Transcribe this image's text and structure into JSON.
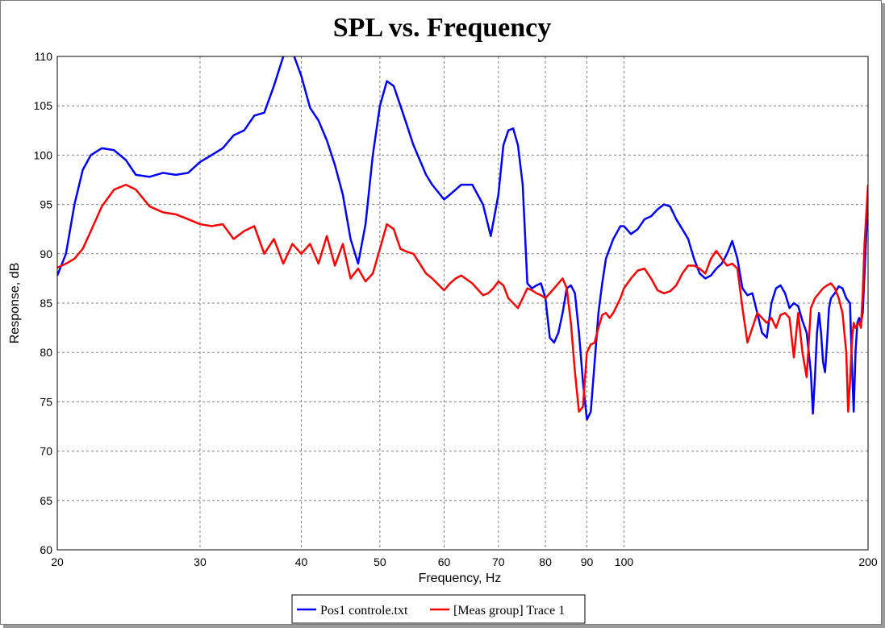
{
  "chart_data": {
    "type": "line",
    "title": "SPL vs. Frequency",
    "xlabel": "Frequency, Hz",
    "ylabel": "Response, dB",
    "x_scale": "log",
    "xlim": [
      20,
      200
    ],
    "ylim": [
      60,
      110
    ],
    "x_ticks": [
      20,
      30,
      40,
      50,
      60,
      70,
      80,
      90,
      100,
      200
    ],
    "y_ticks": [
      60,
      65,
      70,
      75,
      80,
      85,
      90,
      95,
      100,
      105,
      110
    ],
    "grid": true,
    "legend_position": "bottom-center",
    "series": [
      {
        "name": "Pos1 controle.txt",
        "color": "#0000ff",
        "points": [
          [
            20,
            87.8
          ],
          [
            20.5,
            90
          ],
          [
            21,
            95
          ],
          [
            21.5,
            98.5
          ],
          [
            22,
            100
          ],
          [
            22.7,
            100.7
          ],
          [
            23.5,
            100.5
          ],
          [
            24.3,
            99.5
          ],
          [
            25,
            98
          ],
          [
            26,
            97.8
          ],
          [
            27,
            98.2
          ],
          [
            28,
            98
          ],
          [
            29,
            98.2
          ],
          [
            30,
            99.3
          ],
          [
            31,
            100
          ],
          [
            32,
            100.7
          ],
          [
            33,
            102
          ],
          [
            34,
            102.5
          ],
          [
            35,
            104
          ],
          [
            36,
            104.3
          ],
          [
            37,
            107
          ],
          [
            38,
            110
          ],
          [
            39,
            110.5
          ],
          [
            40,
            108
          ],
          [
            41,
            104.8
          ],
          [
            42,
            103.5
          ],
          [
            43,
            101.5
          ],
          [
            44,
            99
          ],
          [
            45,
            96
          ],
          [
            46,
            91.5
          ],
          [
            47,
            89
          ],
          [
            48,
            93
          ],
          [
            49,
            100
          ],
          [
            50,
            105
          ],
          [
            51,
            107.5
          ],
          [
            52,
            107
          ],
          [
            53,
            105
          ],
          [
            54,
            103
          ],
          [
            55,
            101
          ],
          [
            56,
            99.5
          ],
          [
            57,
            98
          ],
          [
            58,
            97
          ],
          [
            60,
            95.5
          ],
          [
            61,
            96
          ],
          [
            62,
            96.5
          ],
          [
            63,
            97
          ],
          [
            65,
            97
          ],
          [
            67,
            95
          ],
          [
            68.5,
            91.8
          ],
          [
            70,
            96
          ],
          [
            71,
            101
          ],
          [
            72,
            102.5
          ],
          [
            73,
            102.7
          ],
          [
            74,
            101
          ],
          [
            75,
            97
          ],
          [
            76,
            87
          ],
          [
            77,
            86.5
          ],
          [
            78,
            86.8
          ],
          [
            79,
            87
          ],
          [
            80,
            85.5
          ],
          [
            81,
            81.5
          ],
          [
            82,
            81
          ],
          [
            83,
            82
          ],
          [
            84,
            84
          ],
          [
            85,
            86.5
          ],
          [
            86,
            86.8
          ],
          [
            87,
            86
          ],
          [
            88,
            82
          ],
          [
            89,
            77
          ],
          [
            90,
            73.2
          ],
          [
            91,
            74
          ],
          [
            92,
            79
          ],
          [
            93,
            84
          ],
          [
            94,
            87
          ],
          [
            95,
            89.5
          ],
          [
            97,
            91.5
          ],
          [
            99,
            92.8
          ],
          [
            100,
            92.8
          ],
          [
            102,
            92
          ],
          [
            104,
            92.5
          ],
          [
            106,
            93.5
          ],
          [
            108,
            93.8
          ],
          [
            110,
            94.5
          ],
          [
            112,
            95
          ],
          [
            114,
            94.8
          ],
          [
            116,
            93.5
          ],
          [
            118,
            92.5
          ],
          [
            120,
            91.5
          ],
          [
            122,
            89.5
          ],
          [
            124,
            88
          ],
          [
            126,
            87.5
          ],
          [
            128,
            87.8
          ],
          [
            130,
            88.5
          ],
          [
            132,
            89
          ],
          [
            134,
            90
          ],
          [
            136,
            91.3
          ],
          [
            138,
            89.5
          ],
          [
            140,
            86.5
          ],
          [
            142,
            85.8
          ],
          [
            144,
            86
          ],
          [
            146,
            84
          ],
          [
            148,
            82
          ],
          [
            150,
            81.5
          ],
          [
            152,
            85
          ],
          [
            154,
            86.5
          ],
          [
            156,
            86.8
          ],
          [
            158,
            86
          ],
          [
            160,
            84.5
          ],
          [
            162,
            85
          ],
          [
            164,
            84.7
          ],
          [
            166,
            83.2
          ],
          [
            168,
            82
          ],
          [
            170,
            78
          ],
          [
            171,
            73.8
          ],
          [
            172,
            77.5
          ],
          [
            173,
            82
          ],
          [
            174,
            84
          ],
          [
            175,
            82
          ],
          [
            176,
            79
          ],
          [
            177,
            78
          ],
          [
            178,
            81
          ],
          [
            179,
            84.5
          ],
          [
            180,
            85.5
          ],
          [
            182,
            86
          ],
          [
            184,
            86.7
          ],
          [
            186,
            86.5
          ],
          [
            188,
            85.5
          ],
          [
            190,
            85
          ],
          [
            191,
            79
          ],
          [
            192,
            74
          ],
          [
            193,
            80
          ],
          [
            194,
            83
          ],
          [
            195,
            83.5
          ],
          [
            196,
            83
          ],
          [
            197,
            84
          ],
          [
            198,
            88
          ],
          [
            199,
            92
          ],
          [
            200,
            96.3
          ]
        ]
      },
      {
        "name": "[Meas group] Trace 1",
        "color": "#ff0000",
        "points": [
          [
            20,
            88.6
          ],
          [
            20.5,
            89
          ],
          [
            21,
            89.5
          ],
          [
            21.5,
            90.5
          ],
          [
            22,
            92.3
          ],
          [
            22.7,
            94.8
          ],
          [
            23.5,
            96.5
          ],
          [
            24.3,
            97
          ],
          [
            25,
            96.5
          ],
          [
            26,
            94.8
          ],
          [
            27,
            94.2
          ],
          [
            28,
            94
          ],
          [
            29,
            93.5
          ],
          [
            30,
            93
          ],
          [
            31,
            92.8
          ],
          [
            32,
            93
          ],
          [
            33,
            91.5
          ],
          [
            34,
            92.3
          ],
          [
            35,
            92.8
          ],
          [
            36,
            90
          ],
          [
            37,
            91.5
          ],
          [
            38,
            89
          ],
          [
            39,
            91
          ],
          [
            40,
            90
          ],
          [
            41,
            91
          ],
          [
            42,
            89
          ],
          [
            43,
            91.8
          ],
          [
            44,
            88.8
          ],
          [
            45,
            91
          ],
          [
            46,
            87.5
          ],
          [
            47,
            88.5
          ],
          [
            48,
            87.2
          ],
          [
            49,
            88
          ],
          [
            50,
            90.5
          ],
          [
            51,
            93
          ],
          [
            52,
            92.5
          ],
          [
            53,
            90.5
          ],
          [
            54,
            90.2
          ],
          [
            55,
            90
          ],
          [
            57,
            88
          ],
          [
            58,
            87.5
          ],
          [
            60,
            86.3
          ],
          [
            61,
            87
          ],
          [
            62,
            87.5
          ],
          [
            63,
            87.8
          ],
          [
            65,
            87
          ],
          [
            67,
            85.8
          ],
          [
            68,
            86
          ],
          [
            69,
            86.5
          ],
          [
            70,
            87.2
          ],
          [
            71,
            86.8
          ],
          [
            72,
            85.5
          ],
          [
            74,
            84.5
          ],
          [
            75,
            85.5
          ],
          [
            76,
            86.5
          ],
          [
            77,
            86.3
          ],
          [
            78,
            86
          ],
          [
            79,
            85.8
          ],
          [
            80,
            85.5
          ],
          [
            81,
            86
          ],
          [
            82,
            86.5
          ],
          [
            83,
            87
          ],
          [
            84,
            87.5
          ],
          [
            85,
            86.5
          ],
          [
            86,
            83
          ],
          [
            87,
            78
          ],
          [
            88,
            74
          ],
          [
            89,
            74.5
          ],
          [
            90,
            80
          ],
          [
            91,
            80.8
          ],
          [
            92,
            81
          ],
          [
            93,
            82.5
          ],
          [
            94,
            83.8
          ],
          [
            95,
            84
          ],
          [
            96,
            83.5
          ],
          [
            97,
            84
          ],
          [
            99,
            85.5
          ],
          [
            100,
            86.5
          ],
          [
            102,
            87.5
          ],
          [
            104,
            88.3
          ],
          [
            106,
            88.5
          ],
          [
            108,
            87.5
          ],
          [
            110,
            86.3
          ],
          [
            112,
            86
          ],
          [
            114,
            86.2
          ],
          [
            116,
            86.8
          ],
          [
            118,
            88
          ],
          [
            120,
            88.8
          ],
          [
            122,
            88.8
          ],
          [
            124,
            88.5
          ],
          [
            126,
            88
          ],
          [
            128,
            89.5
          ],
          [
            130,
            90.3
          ],
          [
            132,
            89.5
          ],
          [
            134,
            88.8
          ],
          [
            136,
            89
          ],
          [
            138,
            88.5
          ],
          [
            140,
            84.5
          ],
          [
            142,
            81
          ],
          [
            144,
            82.5
          ],
          [
            146,
            84
          ],
          [
            148,
            83.5
          ],
          [
            150,
            83
          ],
          [
            152,
            83.5
          ],
          [
            154,
            82.5
          ],
          [
            156,
            83.8
          ],
          [
            158,
            84
          ],
          [
            160,
            83.5
          ],
          [
            162,
            79.5
          ],
          [
            164,
            84
          ],
          [
            166,
            80
          ],
          [
            168,
            77.5
          ],
          [
            170,
            84.5
          ],
          [
            172,
            85.5
          ],
          [
            174,
            86
          ],
          [
            176,
            86.5
          ],
          [
            178,
            86.8
          ],
          [
            180,
            87
          ],
          [
            182,
            86.5
          ],
          [
            184,
            85.5
          ],
          [
            186,
            84
          ],
          [
            188,
            80
          ],
          [
            189,
            74
          ],
          [
            190,
            77
          ],
          [
            191,
            81
          ],
          [
            192,
            83
          ],
          [
            193,
            82.5
          ],
          [
            194,
            82.8
          ],
          [
            195,
            83
          ],
          [
            196,
            82.5
          ],
          [
            197,
            86
          ],
          [
            198,
            91
          ],
          [
            199,
            94
          ],
          [
            200,
            97
          ]
        ]
      }
    ]
  }
}
